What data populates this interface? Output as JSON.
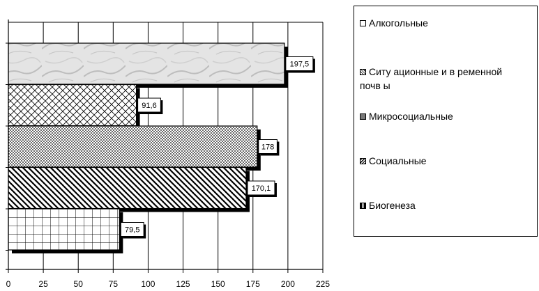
{
  "chart_data": {
    "type": "bar",
    "orientation": "horizontal",
    "categories": [
      "Алкогольные",
      "Ситу ационные и временной почвы",
      "Микросоциальные",
      "Социальные",
      "Биогенеза"
    ],
    "values": [
      197.5,
      91.6,
      178,
      170.1,
      79.5
    ],
    "value_labels": [
      "197,5",
      "91,6",
      "178",
      "170,1",
      "79,5"
    ],
    "xlim": [
      0,
      225
    ],
    "x_ticks": [
      0,
      25,
      50,
      75,
      100,
      125,
      150,
      175,
      200,
      225
    ],
    "grid": "vertical",
    "legend_position": "right",
    "title": "",
    "xlabel": "",
    "ylabel": ""
  },
  "legend": {
    "items": [
      {
        "line1": "Алкогольные",
        "line2": ""
      },
      {
        "line1": "Ситу ационные и в ременной",
        "line2": "почв ы"
      },
      {
        "line1": "Микросоциальные",
        "line2": ""
      },
      {
        "line1": "Социальные",
        "line2": ""
      },
      {
        "line1": "Биогенеза",
        "line2": ""
      }
    ]
  }
}
